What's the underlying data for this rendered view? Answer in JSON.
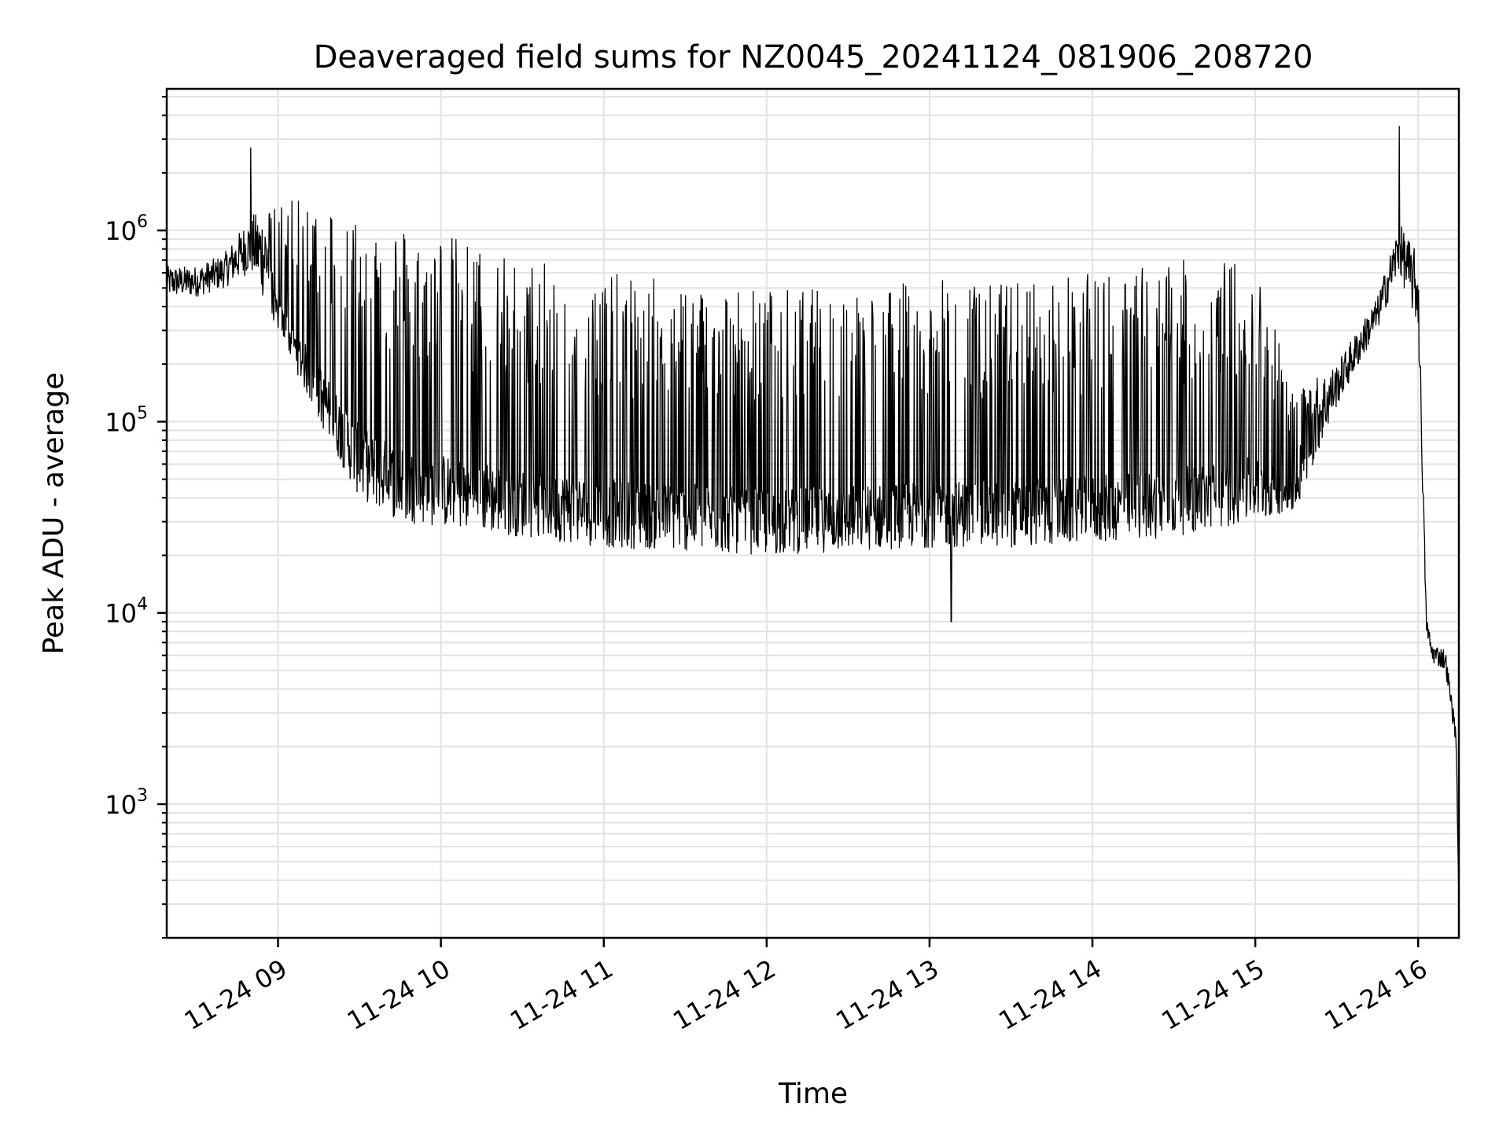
{
  "chart_data": {
    "type": "line",
    "title": "Deaveraged field sums for NZ0045_20241124_081906_208720",
    "xlabel": "Time",
    "ylabel": "Peak ADU - average",
    "x_scale": "time",
    "y_scale": "log",
    "xlim": [
      "2024-11-24 08:19",
      "2024-11-24 16:15"
    ],
    "ylim": [
      200,
      5500000
    ],
    "grid": true,
    "legend": "none",
    "x_ticks": [
      "11-24 09",
      "11-24 10",
      "11-24 11",
      "11-24 12",
      "11-24 13",
      "11-24 14",
      "11-24 15",
      "11-24 16"
    ],
    "y_ticks": [
      {
        "base": "10",
        "exp": "3",
        "value": 1000
      },
      {
        "base": "10",
        "exp": "4",
        "value": 10000
      },
      {
        "base": "10",
        "exp": "5",
        "value": 100000
      },
      {
        "base": "10",
        "exp": "6",
        "value": 1000000
      }
    ],
    "series": [
      {
        "line_color": "#000000",
        "x": [
          "2024-11-24 08:19",
          "2024-11-24 08:30",
          "2024-11-24 08:40",
          "2024-11-24 08:50",
          "2024-11-24 09:00",
          "2024-11-24 09:15",
          "2024-11-24 09:30",
          "2024-11-24 09:45",
          "2024-11-24 10:00",
          "2024-11-24 10:30",
          "2024-11-24 11:00",
          "2024-11-24 11:30",
          "2024-11-24 12:00",
          "2024-11-24 12:30",
          "2024-11-24 13:00",
          "2024-11-24 13:30",
          "2024-11-24 14:00",
          "2024-11-24 14:30",
          "2024-11-24 15:00",
          "2024-11-24 15:15",
          "2024-11-24 15:30",
          "2024-11-24 15:45",
          "2024-11-24 15:53",
          "2024-11-24 16:00",
          "2024-11-24 16:03",
          "2024-11-24 16:05",
          "2024-11-24 16:10",
          "2024-11-24 16:14",
          "2024-11-24 16:15"
        ],
        "y_low": [
          450000,
          450000,
          500000,
          600000,
          300000,
          100000,
          40000,
          30000,
          28000,
          25000,
          22000,
          21000,
          20000,
          21000,
          22000,
          22000,
          23000,
          25000,
          30000,
          35000,
          120000,
          300000,
          600000,
          300000,
          8000,
          5500,
          5000,
          2000,
          300
        ],
        "y_high": [
          650000,
          650000,
          750000,
          1200000,
          1400000,
          1500000,
          1300000,
          1100000,
          1000000,
          700000,
          600000,
          550000,
          500000,
          500000,
          550000,
          550000,
          600000,
          700000,
          700000,
          150000,
          200000,
          450000,
          1100000,
          750000,
          10000,
          7000,
          6500,
          2500,
          300
        ],
        "y_peaks": [
          {
            "x": "2024-11-24 08:50",
            "y": 2700000
          },
          {
            "x": "2024-11-24 15:53",
            "y": 3500000
          },
          {
            "x": "2024-11-24 13:08",
            "y": 9000
          }
        ]
      }
    ]
  }
}
